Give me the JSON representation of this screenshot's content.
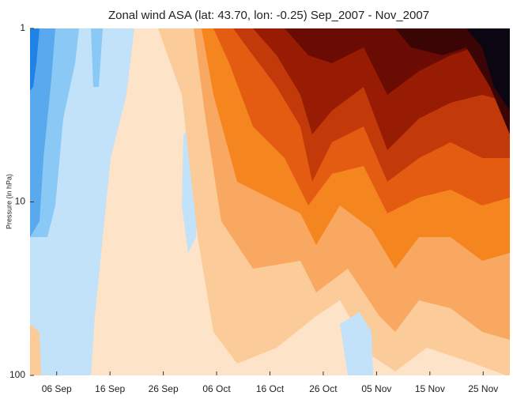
{
  "chart_data": {
    "type": "contour",
    "title": "Zonal wind ASA (lat: 43.70, lon: -0.25) Sep_2007 - Nov_2007",
    "y_label": "Pressure (in hPa)",
    "xlim": [
      "2007-09-01",
      "2007-11-30"
    ],
    "xticks": [
      {
        "value": "2007-09-06",
        "label": "06 Sep"
      },
      {
        "value": "2007-09-16",
        "label": "16 Sep"
      },
      {
        "value": "2007-09-26",
        "label": "26 Sep"
      },
      {
        "value": "2007-10-06",
        "label": "06 Oct"
      },
      {
        "value": "2007-10-16",
        "label": "16 Oct"
      },
      {
        "value": "2007-10-26",
        "label": "26 Oct"
      },
      {
        "value": "2007-11-05",
        "label": "05 Nov"
      },
      {
        "value": "2007-11-15",
        "label": "15 Nov"
      },
      {
        "value": "2007-11-25",
        "label": "25 Nov"
      }
    ],
    "ylim": [
      100,
      1
    ],
    "yticks": [
      1,
      10,
      100
    ],
    "y_log": true
  }
}
